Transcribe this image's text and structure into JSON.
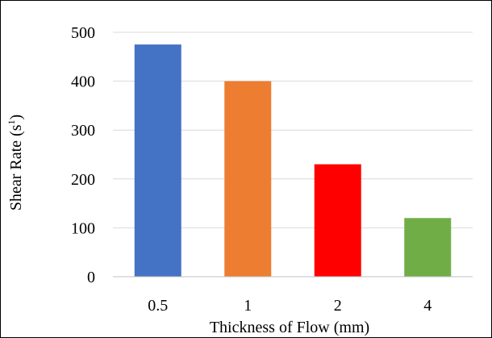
{
  "chart_data": {
    "type": "bar",
    "title": "",
    "xlabel": "Thickness of Flow (mm)",
    "ylabel": {
      "base": "Shear Rate (s",
      "sup": "1",
      "close": ")"
    },
    "categories": [
      "0.5",
      "1",
      "2",
      "4"
    ],
    "values": [
      475,
      400,
      230,
      120
    ],
    "colors": [
      "#4472C4",
      "#ED7D31",
      "#FF0000",
      "#70AD47"
    ],
    "ylim": [
      0,
      500
    ],
    "yticks": [
      "0",
      "100",
      "200",
      "300",
      "400",
      "500"
    ],
    "grid": true,
    "legend": "none"
  }
}
